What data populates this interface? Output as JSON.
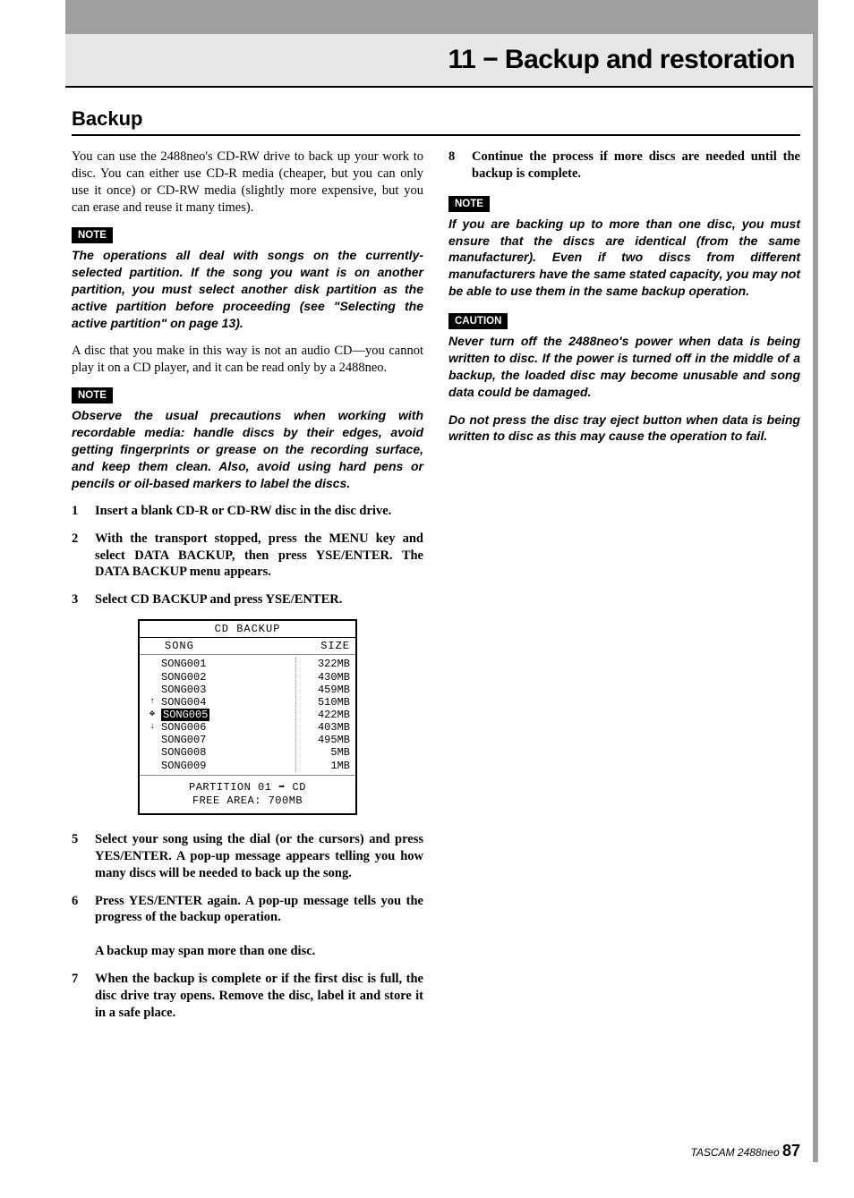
{
  "colors": {
    "header_bg": "#e7e7e7",
    "bar_bg": "#9f9f9f",
    "text": "#000000",
    "badge_bg": "#000000",
    "badge_text": "#ffffff"
  },
  "header": {
    "chapter_title": "11 − Backup and restoration"
  },
  "section": {
    "title": "Backup"
  },
  "left_col": {
    "intro": "You can use the 2488neo's CD-RW drive to back up your work to disc. You can either use CD-R media (cheaper, but you can only use it once) or CD-RW media (slightly more expensive, but you can erase and reuse it many times).",
    "note1_label": "NOTE",
    "note1_body": "The operations all deal with songs on the currently-selected partition. If the song you want is on another partition, you must select another disk partition as the active partition before proceeding (see \"Selecting the active partition\" on page 13).",
    "para2": "A disc that you make in this way is not an audio CD—you cannot play it on a CD player, and it can be read only by a 2488neo.",
    "note2_label": "NOTE",
    "note2_body": "Observe the usual precautions when working with recordable media: handle discs by their edges, avoid getting fingerprints or grease on the recording surface, and keep them clean. Also, avoid using hard pens or pencils or oil-based markers to label the discs.",
    "step1_num": "1",
    "step1_txt": "Insert a blank CD-R or CD-RW disc in the disc drive.",
    "step2_num": "2",
    "step2_txt": " With the transport stopped, press the MENU key and select DATA BACKUP, then press YSE/ENTER. The DATA BACKUP menu appears.",
    "step3_num": "3",
    "step3_txt": "Select CD BACKUP and press YSE/ENTER.",
    "step5_num": "5",
    "step5_txt": "Select your song using the dial (or the cursors) and press YES/ENTER. A pop-up message appears telling you how many discs will be needed to back up the song.",
    "step6_num": "6",
    "step6_txt_a": "Press YES/ENTER again. A pop-up message tells you the progress of the backup operation.",
    "step6_txt_b": "A backup may span more than one disc.",
    "step7_num": "7",
    "step7_txt": "When the backup is complete or if the first disc is full, the disc drive tray opens. Remove the disc, label it and store it in a safe place."
  },
  "right_col": {
    "step8_num": "8",
    "step8_txt": "Continue the process if more discs are needed until the backup is complete.",
    "note3_label": "NOTE",
    "note3_body": "If you are backing up to more than one disc, you must ensure that the discs are identical (from the same manufacturer). Even if two discs from different manufacturers have the same stated capacity, you may not be able to use them in the same backup operation.",
    "caution_label": "CAUTION",
    "caution_body1": "Never turn off the 2488neo's power when data is being written to disc. If the power is turned off in the middle of a backup, the loaded disc may become unusable and song data could be damaged.",
    "caution_body2": "Do not press the disc tray eject button when data is being written to disc as this may cause the operation to fail."
  },
  "screen": {
    "title": "CD BACKUP",
    "col1": "SONG",
    "col2": "SIZE",
    "songs": [
      {
        "name": "SONG001",
        "size": "322MB"
      },
      {
        "name": "SONG002",
        "size": "430MB"
      },
      {
        "name": "SONG003",
        "size": "459MB"
      },
      {
        "name": "SONG004",
        "size": "510MB"
      },
      {
        "name": "SONG005",
        "size": "422MB"
      },
      {
        "name": "SONG006",
        "size": "403MB"
      },
      {
        "name": "SONG007",
        "size": "495MB"
      },
      {
        "name": "SONG008",
        "size": "5MB"
      },
      {
        "name": "SONG009",
        "size": "1MB"
      }
    ],
    "selected_index": 4,
    "arrow_up": "↑",
    "arrow_jog": "✥",
    "arrow_down": "↓",
    "foot1": "PARTITION 01 ➡ CD",
    "foot2": "FREE AREA: 700MB"
  },
  "footer": {
    "product": "TASCAM  2488neo",
    "page": "87"
  }
}
